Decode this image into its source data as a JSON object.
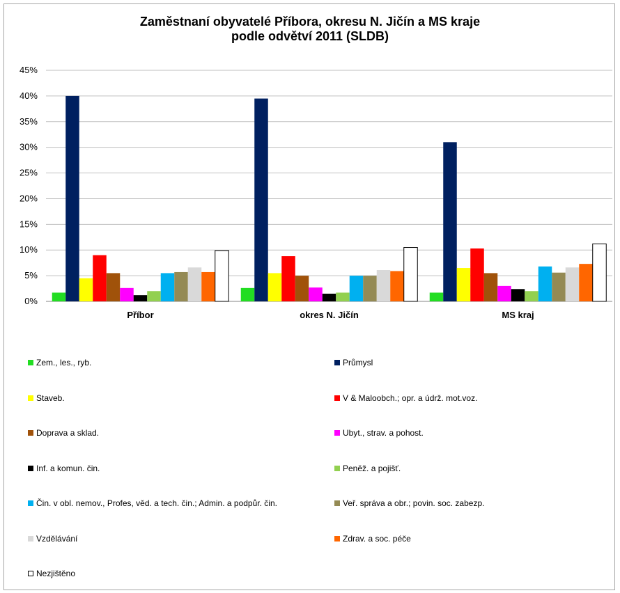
{
  "chart_data": {
    "type": "bar",
    "title_lines": [
      "Zaměstnaní obyvatelé Příbora, okresu N. Jičín a MS kraje",
      "podle odvětví 2011 (SLDB)"
    ],
    "categories": [
      "Příbor",
      "okres N. Jičín",
      "MS kraj"
    ],
    "y_ticks": [
      "0%",
      "5%",
      "10%",
      "15%",
      "20%",
      "25%",
      "30%",
      "35%",
      "40%",
      "45%"
    ],
    "ylim": [
      0,
      45
    ],
    "y_unit": "%",
    "grid": true,
    "legend_position": "bottom",
    "series": [
      {
        "name": "Zem., les., ryb.",
        "color": "#22dd22",
        "values": [
          1.7,
          2.6,
          1.7
        ]
      },
      {
        "name": "Průmysl",
        "color": "#002060",
        "values": [
          40.0,
          39.5,
          31.0
        ]
      },
      {
        "name": "Staveb.",
        "color": "#ffff00",
        "values": [
          4.5,
          5.5,
          6.5
        ]
      },
      {
        "name": "V & Maloobch.; opr. a údrž. mot.voz.",
        "color": "#ff0000",
        "values": [
          9.0,
          8.8,
          10.3
        ]
      },
      {
        "name": "Doprava a sklad.",
        "color": "#a0520a",
        "values": [
          5.5,
          5.0,
          5.5
        ]
      },
      {
        "name": "Ubyt., strav. a pohost.",
        "color": "#ff00ff",
        "values": [
          2.6,
          2.7,
          3.0
        ]
      },
      {
        "name": "Inf. a komun. čin.",
        "color": "#000000",
        "values": [
          1.2,
          1.5,
          2.4
        ]
      },
      {
        "name": "Peněž. a pojišť.",
        "color": "#92d050",
        "values": [
          2.0,
          1.7,
          2.0
        ]
      },
      {
        "name": "Čin. v obl. nemov., Profes, věd. a tech. čin.; Admin. a podpůr. čin.",
        "color": "#00b0f0",
        "values": [
          5.5,
          5.0,
          6.8
        ]
      },
      {
        "name": "Veř. správa a obr.; povin. soc. zabezp.",
        "color": "#948a54",
        "values": [
          5.7,
          5.0,
          5.6
        ]
      },
      {
        "name": "Vzdělávání",
        "color": "#d9d9d9",
        "values": [
          6.6,
          6.1,
          6.6
        ]
      },
      {
        "name": "Zdrav. a soc. péče",
        "color": "#ff6600",
        "values": [
          5.7,
          5.9,
          7.3
        ]
      },
      {
        "name": "Nezjištěno",
        "color": "#ffffff",
        "values": [
          9.9,
          10.5,
          11.2
        ]
      }
    ]
  }
}
